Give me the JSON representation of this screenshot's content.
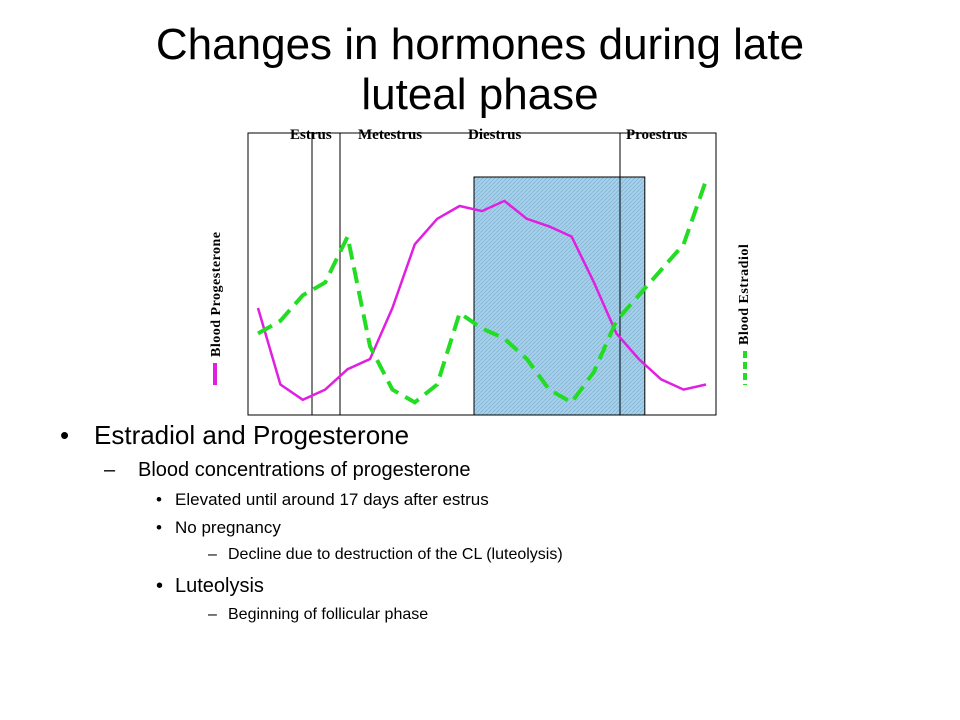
{
  "title": {
    "line1": "Changes in hormones during late",
    "line2": "luteal phase"
  },
  "chart_data": {
    "type": "line",
    "phases": [
      "Estrus",
      "Metestrus",
      "Diestrus",
      "Proestrus"
    ],
    "ylabel_left": "Blood Progesterone",
    "ylabel_right": "Blood Estradiol",
    "x": [
      0,
      1,
      2,
      3,
      4,
      5,
      6,
      7,
      8,
      9,
      10,
      11,
      12,
      13,
      14,
      15,
      16,
      17,
      18,
      19,
      20
    ],
    "series": [
      {
        "name": "Blood Progesterone",
        "color": "#e020e0",
        "style": "solid",
        "values": [
          40,
          10,
          4,
          8,
          16,
          20,
          40,
          65,
          75,
          80,
          78,
          82,
          75,
          72,
          68,
          50,
          30,
          20,
          12,
          8,
          10
        ]
      },
      {
        "name": "Blood Estradiol",
        "color": "#22dd22",
        "style": "dashed",
        "values": [
          30,
          35,
          45,
          50,
          68,
          25,
          8,
          3,
          10,
          38,
          32,
          28,
          20,
          8,
          3,
          15,
          35,
          45,
          55,
          65,
          90
        ]
      }
    ],
    "highlight_range": [
      10,
      17
    ],
    "ylim": [
      0,
      100
    ]
  },
  "bullets": {
    "b1": "Estradiol and Progesterone",
    "b1_1": "Blood concentrations of progesterone",
    "b1_1_1": "Elevated until around 17 days after estrus",
    "b1_1_2": "No pregnancy",
    "b1_1_2_1": "Decline due to destruction of the CL (luteolysis)",
    "b1_1_3": "Luteolysis",
    "b1_1_3_1": "Beginning of follicular phase"
  }
}
